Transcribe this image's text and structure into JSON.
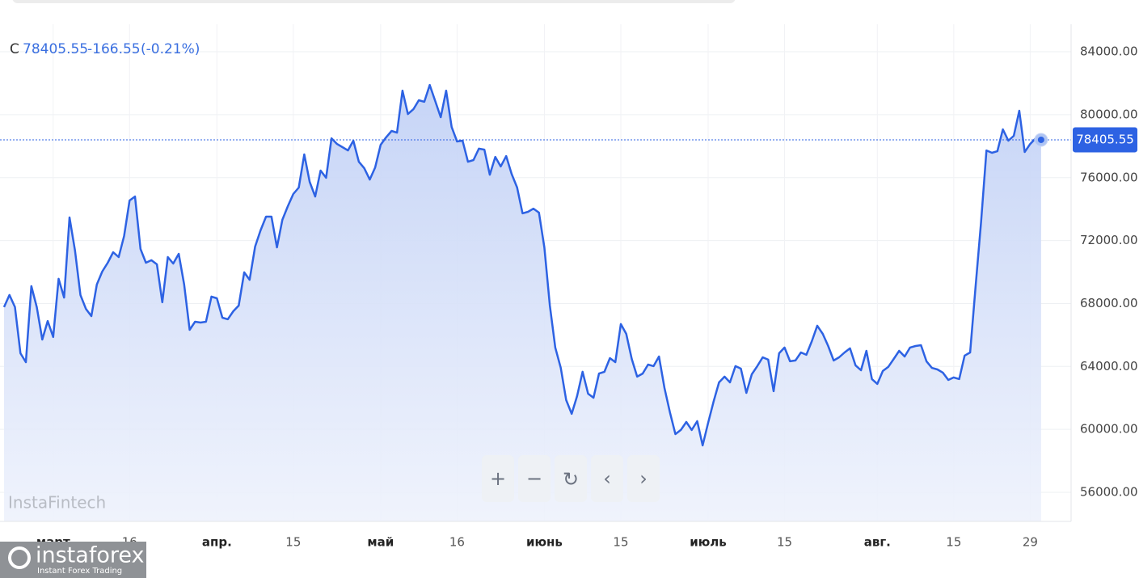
{
  "header": {
    "close_prefix": "C",
    "change": -166.55,
    "change_pct_label": "(-0.21%)"
  },
  "watermark": "InstaFintech",
  "brand": {
    "name": "instaforex",
    "tagline": "Instant Forex Trading"
  },
  "chart_data": {
    "type": "line",
    "color": "#2d62e3",
    "grid": true,
    "values": [
      67770,
      68540,
      67770,
      64840,
      64270,
      69100,
      67770,
      65710,
      66890,
      65870,
      69570,
      68380,
      73470,
      71360,
      68540,
      67660,
      67200,
      69210,
      70030,
      70590,
      71260,
      70950,
      72290,
      74550,
      74800,
      71470,
      70590,
      70750,
      70490,
      68080,
      70950,
      70540,
      71160,
      69210,
      66330,
      66840,
      66790,
      66840,
      68440,
      68330,
      67100,
      67000,
      67510,
      67870,
      69980,
      69510,
      71620,
      72650,
      73520,
      73520,
      71570,
      73320,
      74190,
      74960,
      75370,
      77480,
      75730,
      74800,
      76450,
      75990,
      78500,
      78140,
      77940,
      77730,
      78350,
      77010,
      76600,
      75880,
      76650,
      78090,
      78560,
      78970,
      78860,
      81530,
      80040,
      80350,
      80920,
      80820,
      81890,
      80870,
      79840,
      81530,
      79220,
      78300,
      78350,
      77010,
      77120,
      77840,
      77780,
      76190,
      77320,
      76710,
      77370,
      76240,
      75370,
      73730,
      73830,
      74030,
      73780,
      71570,
      67870,
      65200,
      63910,
      61860,
      60990,
      62120,
      63660,
      62270,
      62010,
      63550,
      63660,
      64530,
      64270,
      66690,
      66070,
      64480,
      63350,
      63550,
      64120,
      64020,
      64630,
      62630,
      61090,
      59700,
      59960,
      60470,
      59960,
      60520,
      58980,
      60420,
      61760,
      62990,
      63350,
      62990,
      64020,
      63860,
      62320,
      63500,
      64020,
      64580,
      64430,
      62430,
      64840,
      65200,
      64330,
      64380,
      64890,
      64740,
      65610,
      66590,
      66070,
      65300,
      64380,
      64580,
      64890,
      65150,
      64070,
      63760,
      64990,
      63200,
      62890,
      63710,
      63970,
      64480,
      64990,
      64630,
      65200,
      65300,
      65350,
      64330,
      63910,
      63810,
      63610,
      63140,
      63300,
      63200,
      64690,
      64890,
      69050,
      73160,
      77730,
      77580,
      77680,
      79070,
      78350,
      78660,
      80250,
      77630,
      78140,
      78500,
      78405.55
    ],
    "xlim": [
      -0.74,
      195.5
    ],
    "xticks": [
      {
        "value": 9,
        "label": "март"
      },
      {
        "value": 23,
        "label": "16"
      },
      {
        "value": 39,
        "label": "апр."
      },
      {
        "value": 53,
        "label": "15"
      },
      {
        "value": 69,
        "label": "май"
      },
      {
        "value": 83,
        "label": "16"
      },
      {
        "value": 99,
        "label": "июнь"
      },
      {
        "value": 113,
        "label": "15"
      },
      {
        "value": 129,
        "label": "июль"
      },
      {
        "value": 143,
        "label": "15"
      },
      {
        "value": 160,
        "label": "авг."
      },
      {
        "value": 174,
        "label": "15"
      },
      {
        "value": 188,
        "label": "29"
      }
    ],
    "ylim": [
      54150,
      85750
    ],
    "yticks": [
      {
        "value": 56000,
        "label": "56000.00"
      },
      {
        "value": 60000,
        "label": "60000.00"
      },
      {
        "value": 64000,
        "label": "64000.00"
      },
      {
        "value": 68000,
        "label": "68000.00"
      },
      {
        "value": 72000,
        "label": "72000.00"
      },
      {
        "value": 76000,
        "label": "76000.00"
      },
      {
        "value": 80000,
        "label": "80000.00"
      },
      {
        "value": 84000,
        "label": "84000.00"
      }
    ]
  }
}
